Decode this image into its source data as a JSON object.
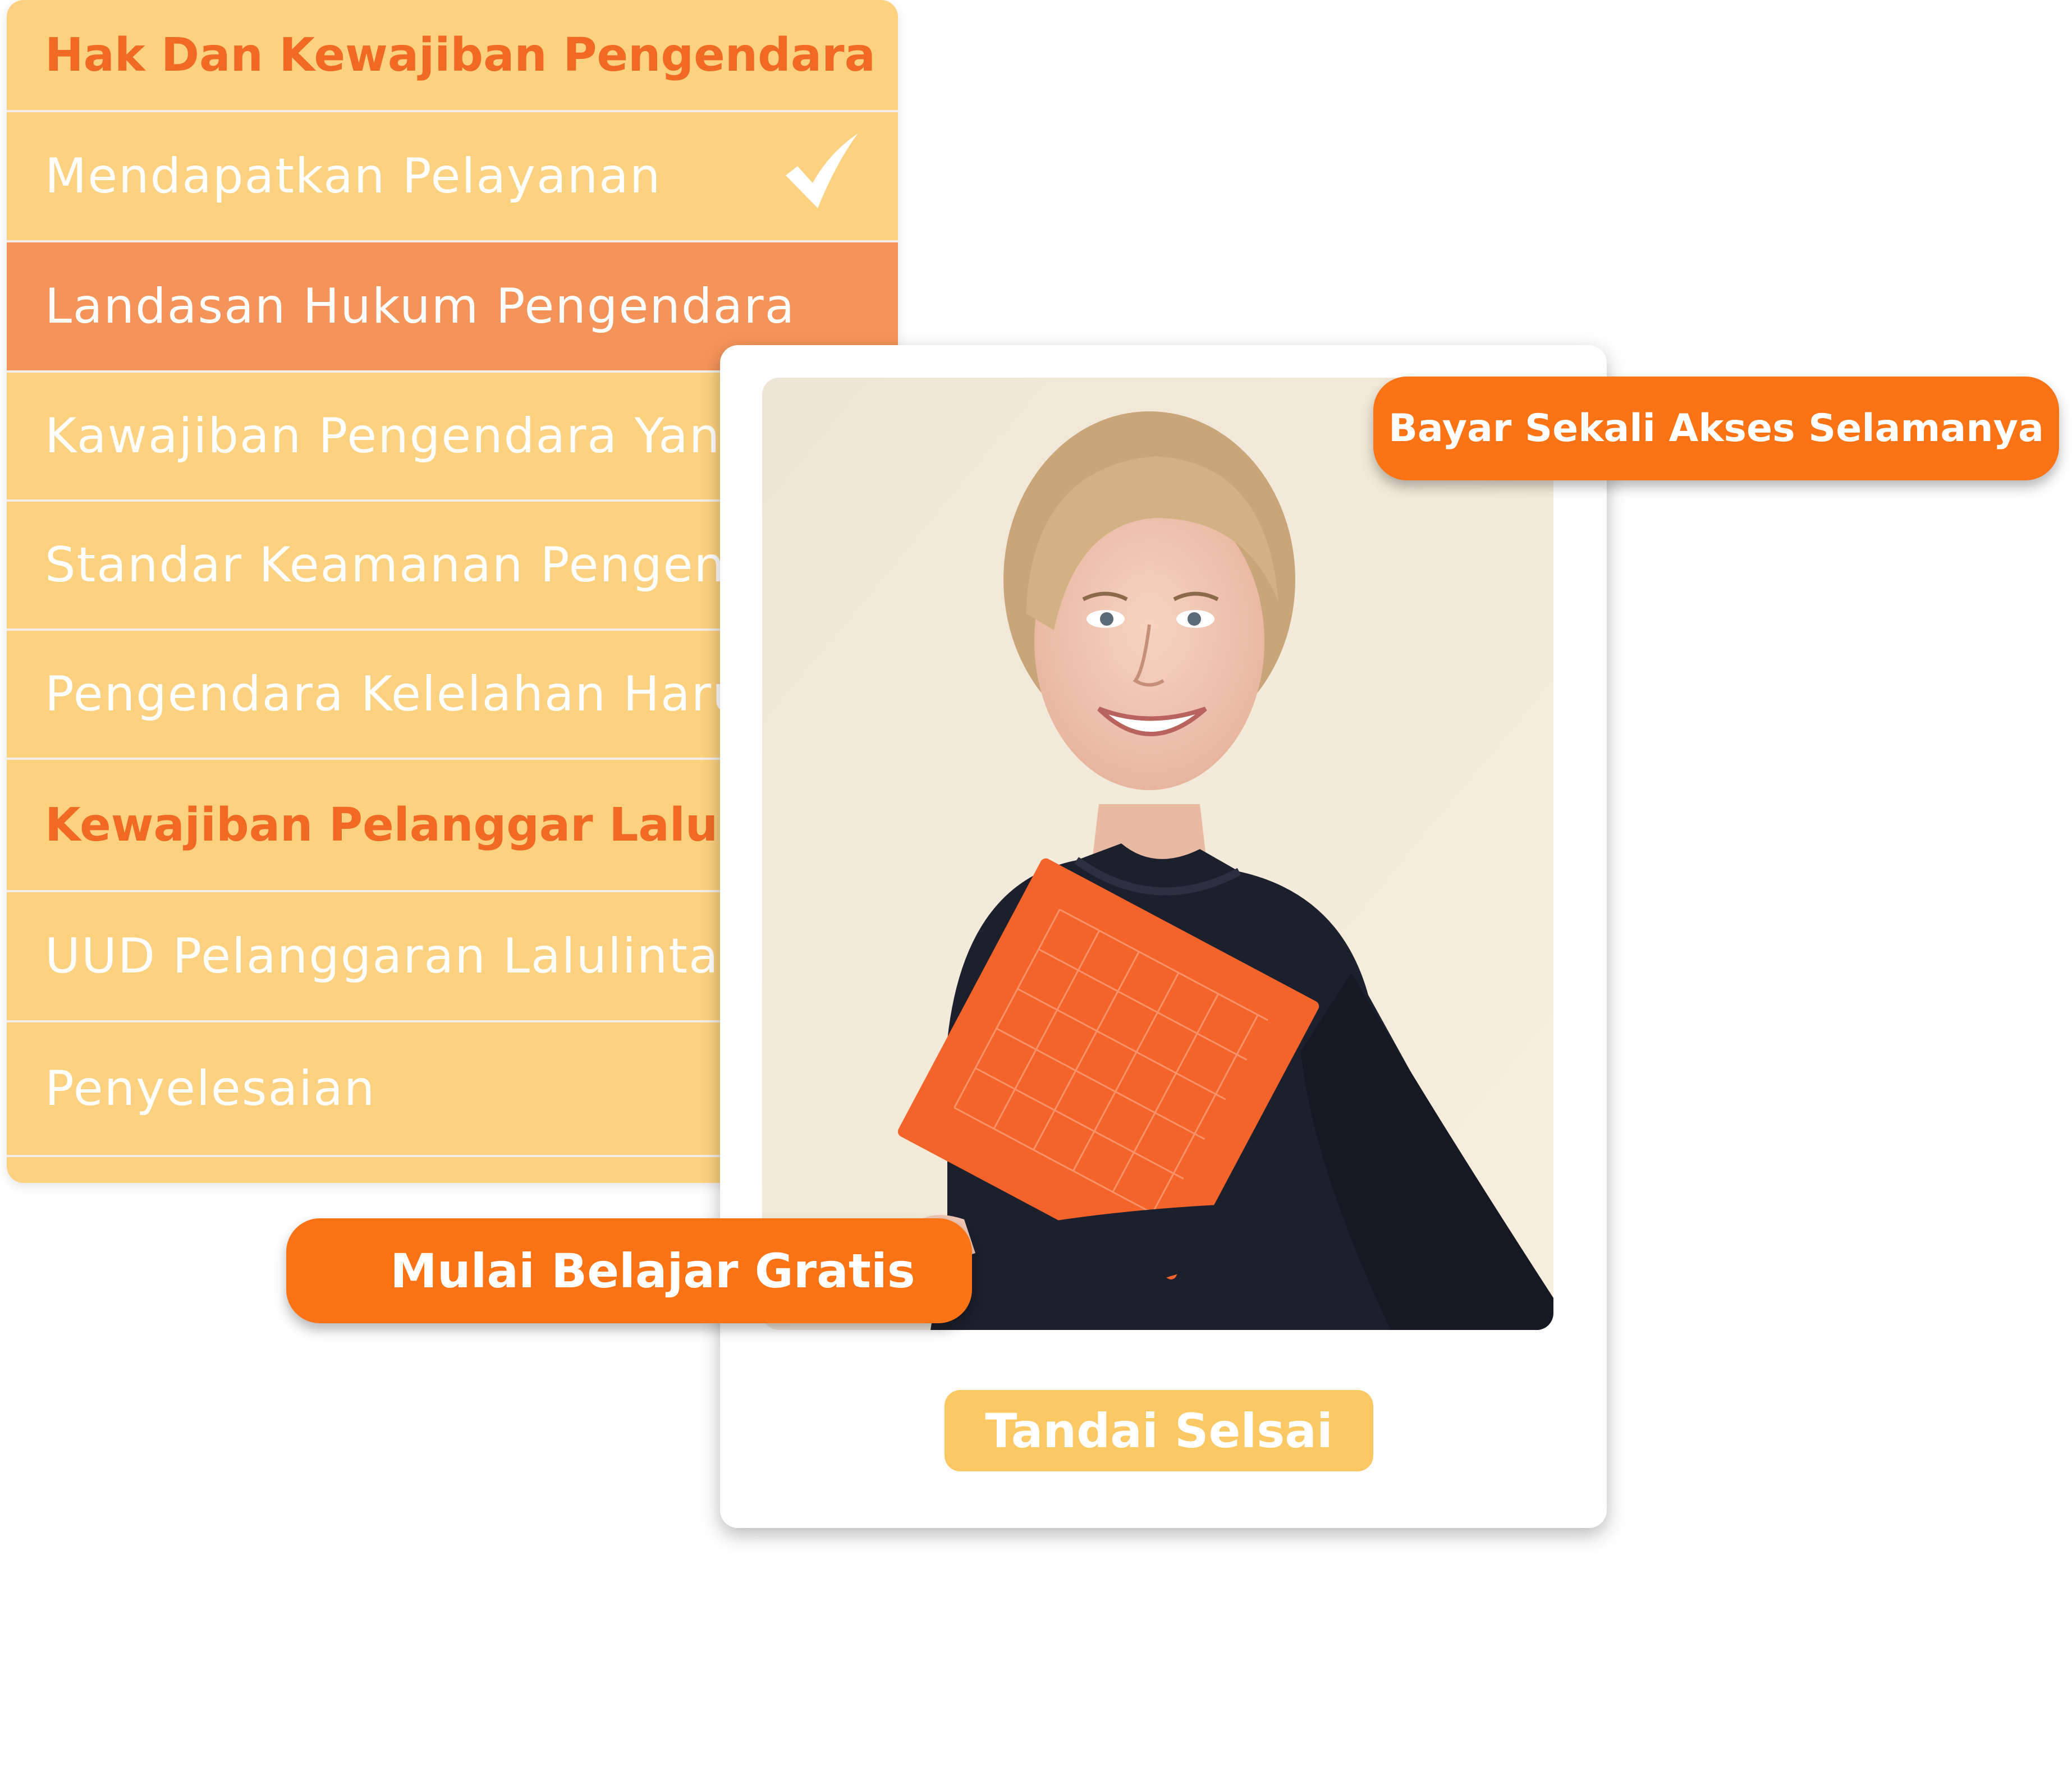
{
  "outline": {
    "items": [
      {
        "type": "section",
        "label": "Hak Dan Kewajiban Pengendara"
      },
      {
        "type": "lesson",
        "label": "Mendapatkan Pelayanan",
        "completed": true
      },
      {
        "type": "lesson",
        "label": "Landasan Hukum Pengendara",
        "active": true
      },
      {
        "type": "lesson",
        "label": "Kawajiban Pengendara Yan"
      },
      {
        "type": "lesson",
        "label": "Standar Keamanan Pengen"
      },
      {
        "type": "lesson",
        "label": "Pengendara Kelelahan Haru"
      },
      {
        "type": "section",
        "label": "Kewajiban Pelanggar Laluli"
      },
      {
        "type": "lesson",
        "label": "UUD Pelanggaran Lalulintas"
      },
      {
        "type": "lesson",
        "label": "Penyelesaian"
      }
    ]
  },
  "card": {
    "mark_done_label": "Tandai Selsai"
  },
  "cta": {
    "lifetime_label": "Bayar Sekali Akses Selamanya",
    "free_label": "Mulai Belajar Gratis"
  },
  "colors": {
    "list_bg": "#fcd17f",
    "active_row": "#f5945a",
    "section_text": "#f06a23",
    "cta_orange": "#fb7314",
    "mark_done_bg": "#fcc864"
  },
  "icons": {
    "completed": "check-icon"
  }
}
